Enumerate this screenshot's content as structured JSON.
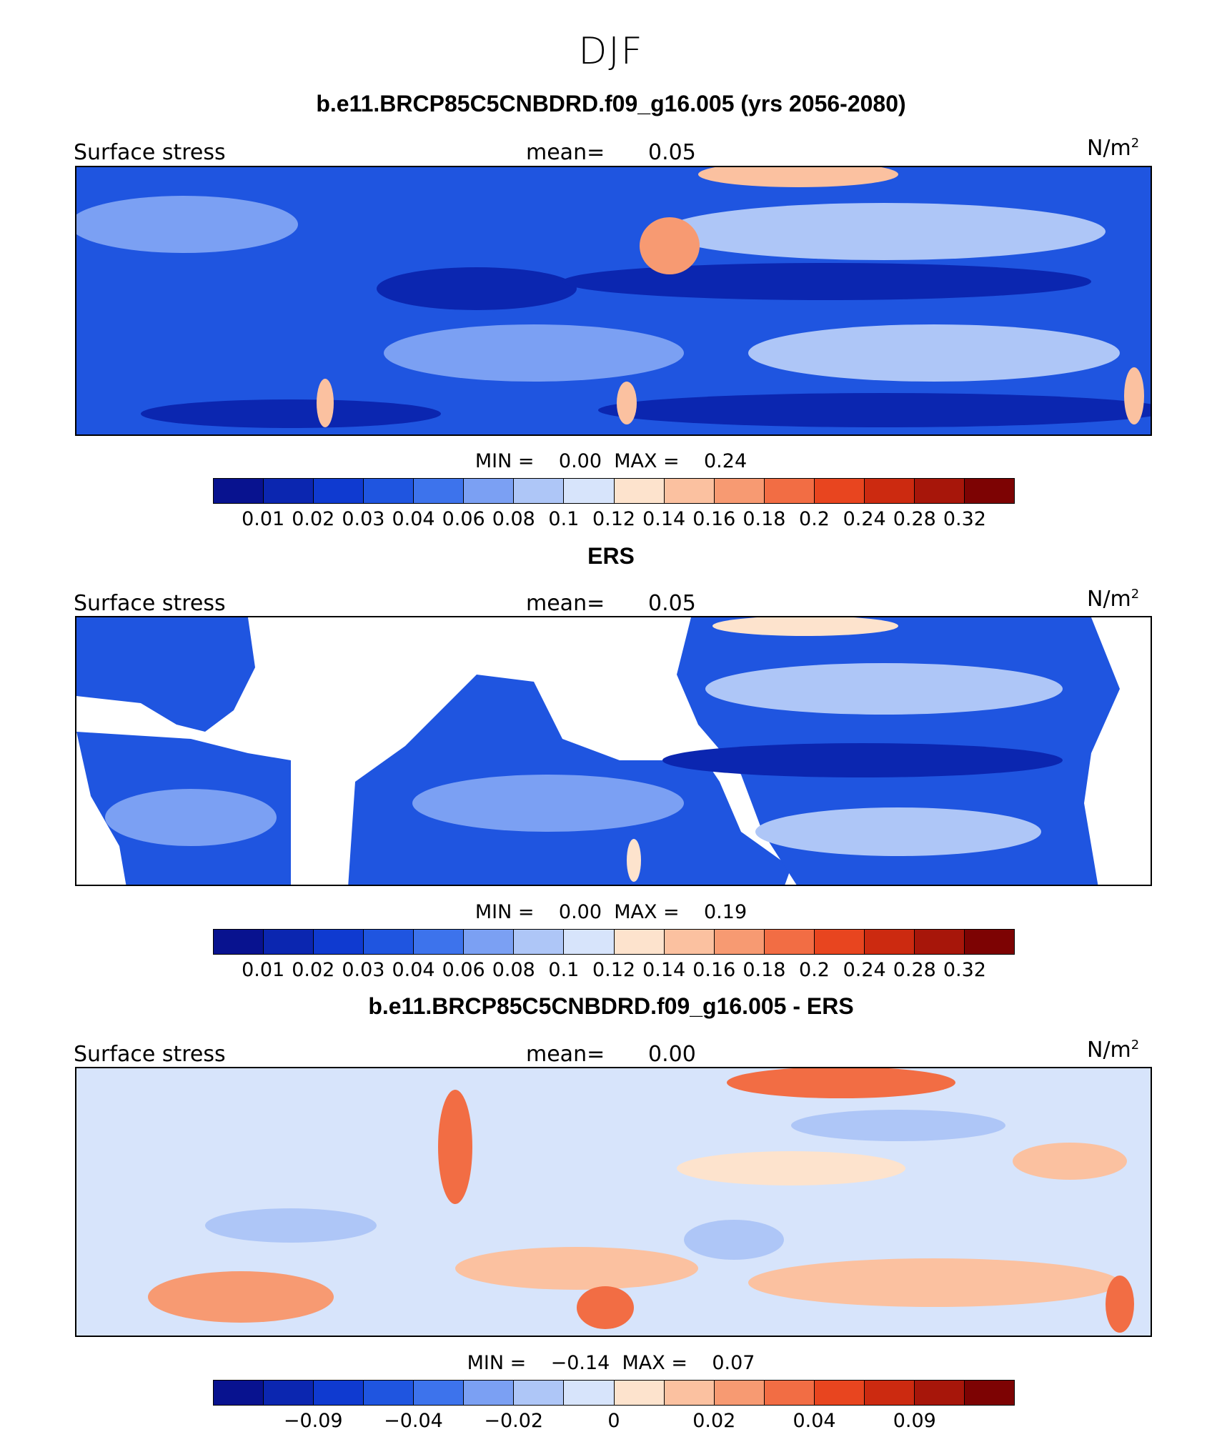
{
  "figure": {
    "season": "DJF"
  },
  "colors": {
    "abs_scale": [
      "#08128f",
      "#0b26b0",
      "#0f3ad0",
      "#1f55e0",
      "#3d73ec",
      "#7ba0f3",
      "#aec6f7",
      "#d7e4fb",
      "#fde3cd",
      "#fbc1a0",
      "#f79a72",
      "#f26d44",
      "#e8451f",
      "#cc2a10",
      "#a7160a",
      "#7d0303"
    ],
    "diff_scale": [
      "#08128f",
      "#0b26b0",
      "#0f3ad0",
      "#1f55e0",
      "#3d73ec",
      "#7ba0f3",
      "#aec6f7",
      "#d7e4fb",
      "#fde3cd",
      "#fbc1a0",
      "#f79a72",
      "#f26d44",
      "#e8451f",
      "#cc2a10",
      "#a7160a",
      "#7d0303"
    ],
    "land": "#ffffff"
  },
  "chart_data": [
    {
      "type": "heatmap",
      "title": "b.e11.BRCP85C5CNBDRD.f09_g16.005 (yrs 2056-2080)",
      "left_label": "Surface stress",
      "mean_label": "mean=",
      "mean_value": "0.05",
      "units_base": "N/m",
      "units_exp": "2",
      "min_label": "MIN =",
      "min_value": "0.00",
      "max_label": "MAX =",
      "max_value": "0.24",
      "colorbar_ticks": [
        "0.01",
        "0.02",
        "0.03",
        "0.04",
        "0.06",
        "0.08",
        "0.1",
        "0.12",
        "0.14",
        "0.16",
        "0.18",
        "0.2",
        "0.24",
        "0.28",
        "0.32"
      ],
      "palette": "abs_scale"
    },
    {
      "type": "heatmap",
      "title": "ERS",
      "left_label": "Surface stress",
      "mean_label": "mean=",
      "mean_value": "0.05",
      "units_base": "N/m",
      "units_exp": "2",
      "min_label": "MIN =",
      "min_value": "0.00",
      "max_label": "MAX =",
      "max_value": "0.19",
      "colorbar_ticks": [
        "0.01",
        "0.02",
        "0.03",
        "0.04",
        "0.06",
        "0.08",
        "0.1",
        "0.12",
        "0.14",
        "0.16",
        "0.18",
        "0.2",
        "0.24",
        "0.28",
        "0.32"
      ],
      "palette": "abs_scale"
    },
    {
      "type": "heatmap",
      "title": "b.e11.BRCP85C5CNBDRD.f09_g16.005 - ERS",
      "left_label": "Surface stress",
      "mean_label": "mean=",
      "mean_value": "0.00",
      "units_base": "N/m",
      "units_exp": "2",
      "min_label": "MIN =",
      "min_value": "−0.14",
      "max_label": "MAX =",
      "max_value": "0.07",
      "colorbar_ticks": [
        "−0.09",
        "−0.04",
        "−0.02",
        "0",
        "0.02",
        "0.04",
        "0.09"
      ],
      "palette": "diff_scale"
    }
  ]
}
